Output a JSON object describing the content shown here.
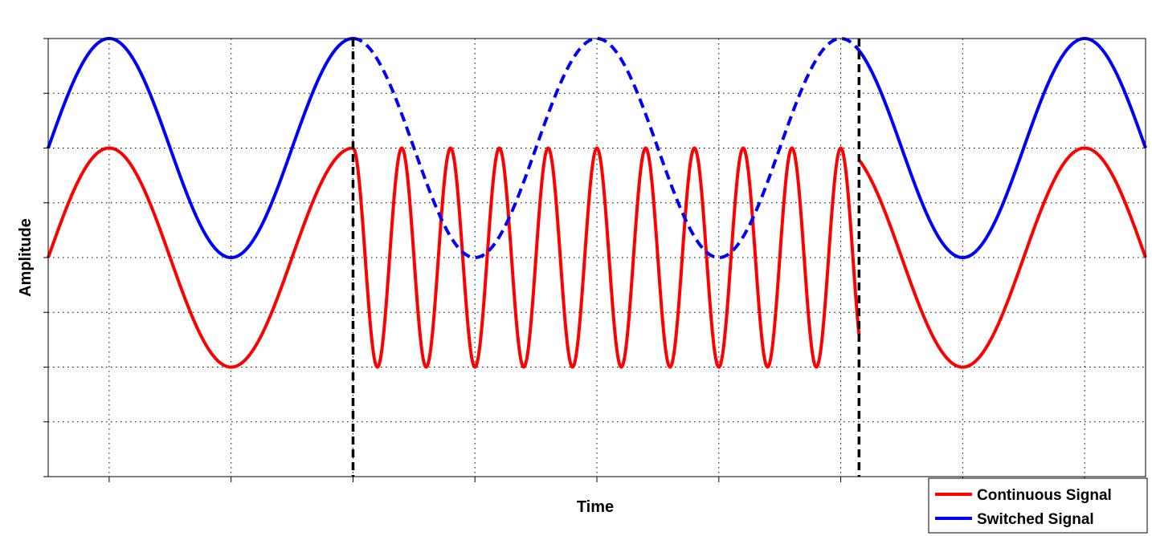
{
  "chart_data": {
    "type": "line",
    "title": "",
    "xlabel": "Time",
    "ylabel": "Amplitude",
    "x_tick_labels": "none",
    "y_tick_labels": "none",
    "xlim": [
      0,
      9
    ],
    "ylim": [
      -3,
      1
    ],
    "grid": true,
    "grid_style": "dotted",
    "legend_position": "bottom-right",
    "switch_points": [
      2.5,
      6.65
    ],
    "series": [
      {
        "name": "Continuous Signal",
        "color": "#ff0000",
        "segments": [
          {
            "style": "solid",
            "x_start": 0,
            "x_end": 2.5,
            "formula": "-1 + sin(2*pi*x/2)"
          },
          {
            "style": "solid",
            "x_start": 2.5,
            "x_end": 6.65,
            "formula": "-1 + cos(2*pi*(x-2.5)/0.4)"
          },
          {
            "style": "solid",
            "x_start": 6.65,
            "x_end": 9,
            "formula": "-1 + sin(2*pi*x/2)"
          }
        ]
      },
      {
        "name": "Switched Signal",
        "color": "#0000ff",
        "segments": [
          {
            "style": "solid",
            "x_start": 0,
            "x_end": 2.5,
            "formula": "sin(2*pi*x/2)"
          },
          {
            "style": "dashed",
            "x_start": 2.5,
            "x_end": 6.65,
            "formula": "sin(2*pi*x/2)"
          },
          {
            "style": "solid",
            "x_start": 6.65,
            "x_end": 9,
            "formula": "sin(2*pi*x/2)"
          }
        ]
      }
    ],
    "colors": {
      "divider": "#000000",
      "grid": "#000000",
      "axes": "#000000"
    }
  }
}
